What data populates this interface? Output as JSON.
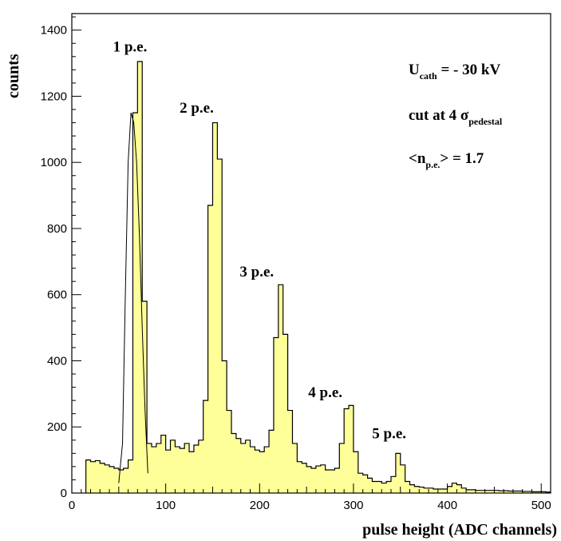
{
  "chart_data": {
    "type": "bar",
    "xlabel": "pulse height (ADC channels)",
    "ylabel": "counts",
    "xlim": [
      0,
      510
    ],
    "ylim": [
      0,
      1450
    ],
    "x_ticks": [
      0,
      100,
      200,
      300,
      400,
      500
    ],
    "y_ticks": [
      0,
      200,
      400,
      600,
      800,
      1000,
      1200,
      1400
    ],
    "bin_width": 5,
    "bin_start": 15,
    "values": [
      100,
      95,
      98,
      90,
      85,
      80,
      75,
      70,
      75,
      100,
      1150,
      1305,
      580,
      150,
      140,
      150,
      175,
      130,
      160,
      140,
      135,
      150,
      125,
      145,
      160,
      280,
      870,
      1120,
      1010,
      400,
      250,
      180,
      165,
      150,
      160,
      140,
      130,
      125,
      140,
      190,
      470,
      630,
      480,
      250,
      150,
      95,
      90,
      80,
      75,
      82,
      85,
      70,
      70,
      75,
      150,
      255,
      265,
      125,
      60,
      55,
      45,
      35,
      35,
      30,
      35,
      50,
      120,
      85,
      35,
      25,
      20,
      18,
      15,
      15,
      12,
      12,
      12,
      20,
      30,
      25,
      15,
      10,
      10,
      8,
      8,
      8,
      8,
      8,
      7,
      7,
      6,
      6,
      6,
      5,
      5,
      4,
      4,
      4,
      3
    ],
    "fit": {
      "x": [
        50,
        54,
        57,
        60,
        63,
        66,
        69,
        72,
        75,
        78,
        81
      ],
      "y": [
        30,
        150,
        600,
        1000,
        1150,
        1120,
        1000,
        780,
        500,
        250,
        60
      ]
    },
    "fill_color": "#ffff99",
    "line_color": "#000000",
    "annotations": [
      {
        "text": "1 p.e.",
        "x": 62,
        "y": 1335
      },
      {
        "text": "2 p.e.",
        "x": 133,
        "y": 1150
      },
      {
        "text": "3 p.e.",
        "x": 197,
        "y": 655
      },
      {
        "text": "4 p.e.",
        "x": 270,
        "y": 290
      },
      {
        "text": "5 p.e.",
        "x": 338,
        "y": 165
      }
    ],
    "info": [
      {
        "main": "U",
        "sub": "cath",
        "rest": " = - 30 kV"
      },
      {
        "main": "cut at 4 σ",
        "sub": "pedestal",
        "rest": ""
      },
      {
        "main": "<n",
        "sub": "p.e.",
        "rest": "> = 1.7"
      }
    ]
  }
}
